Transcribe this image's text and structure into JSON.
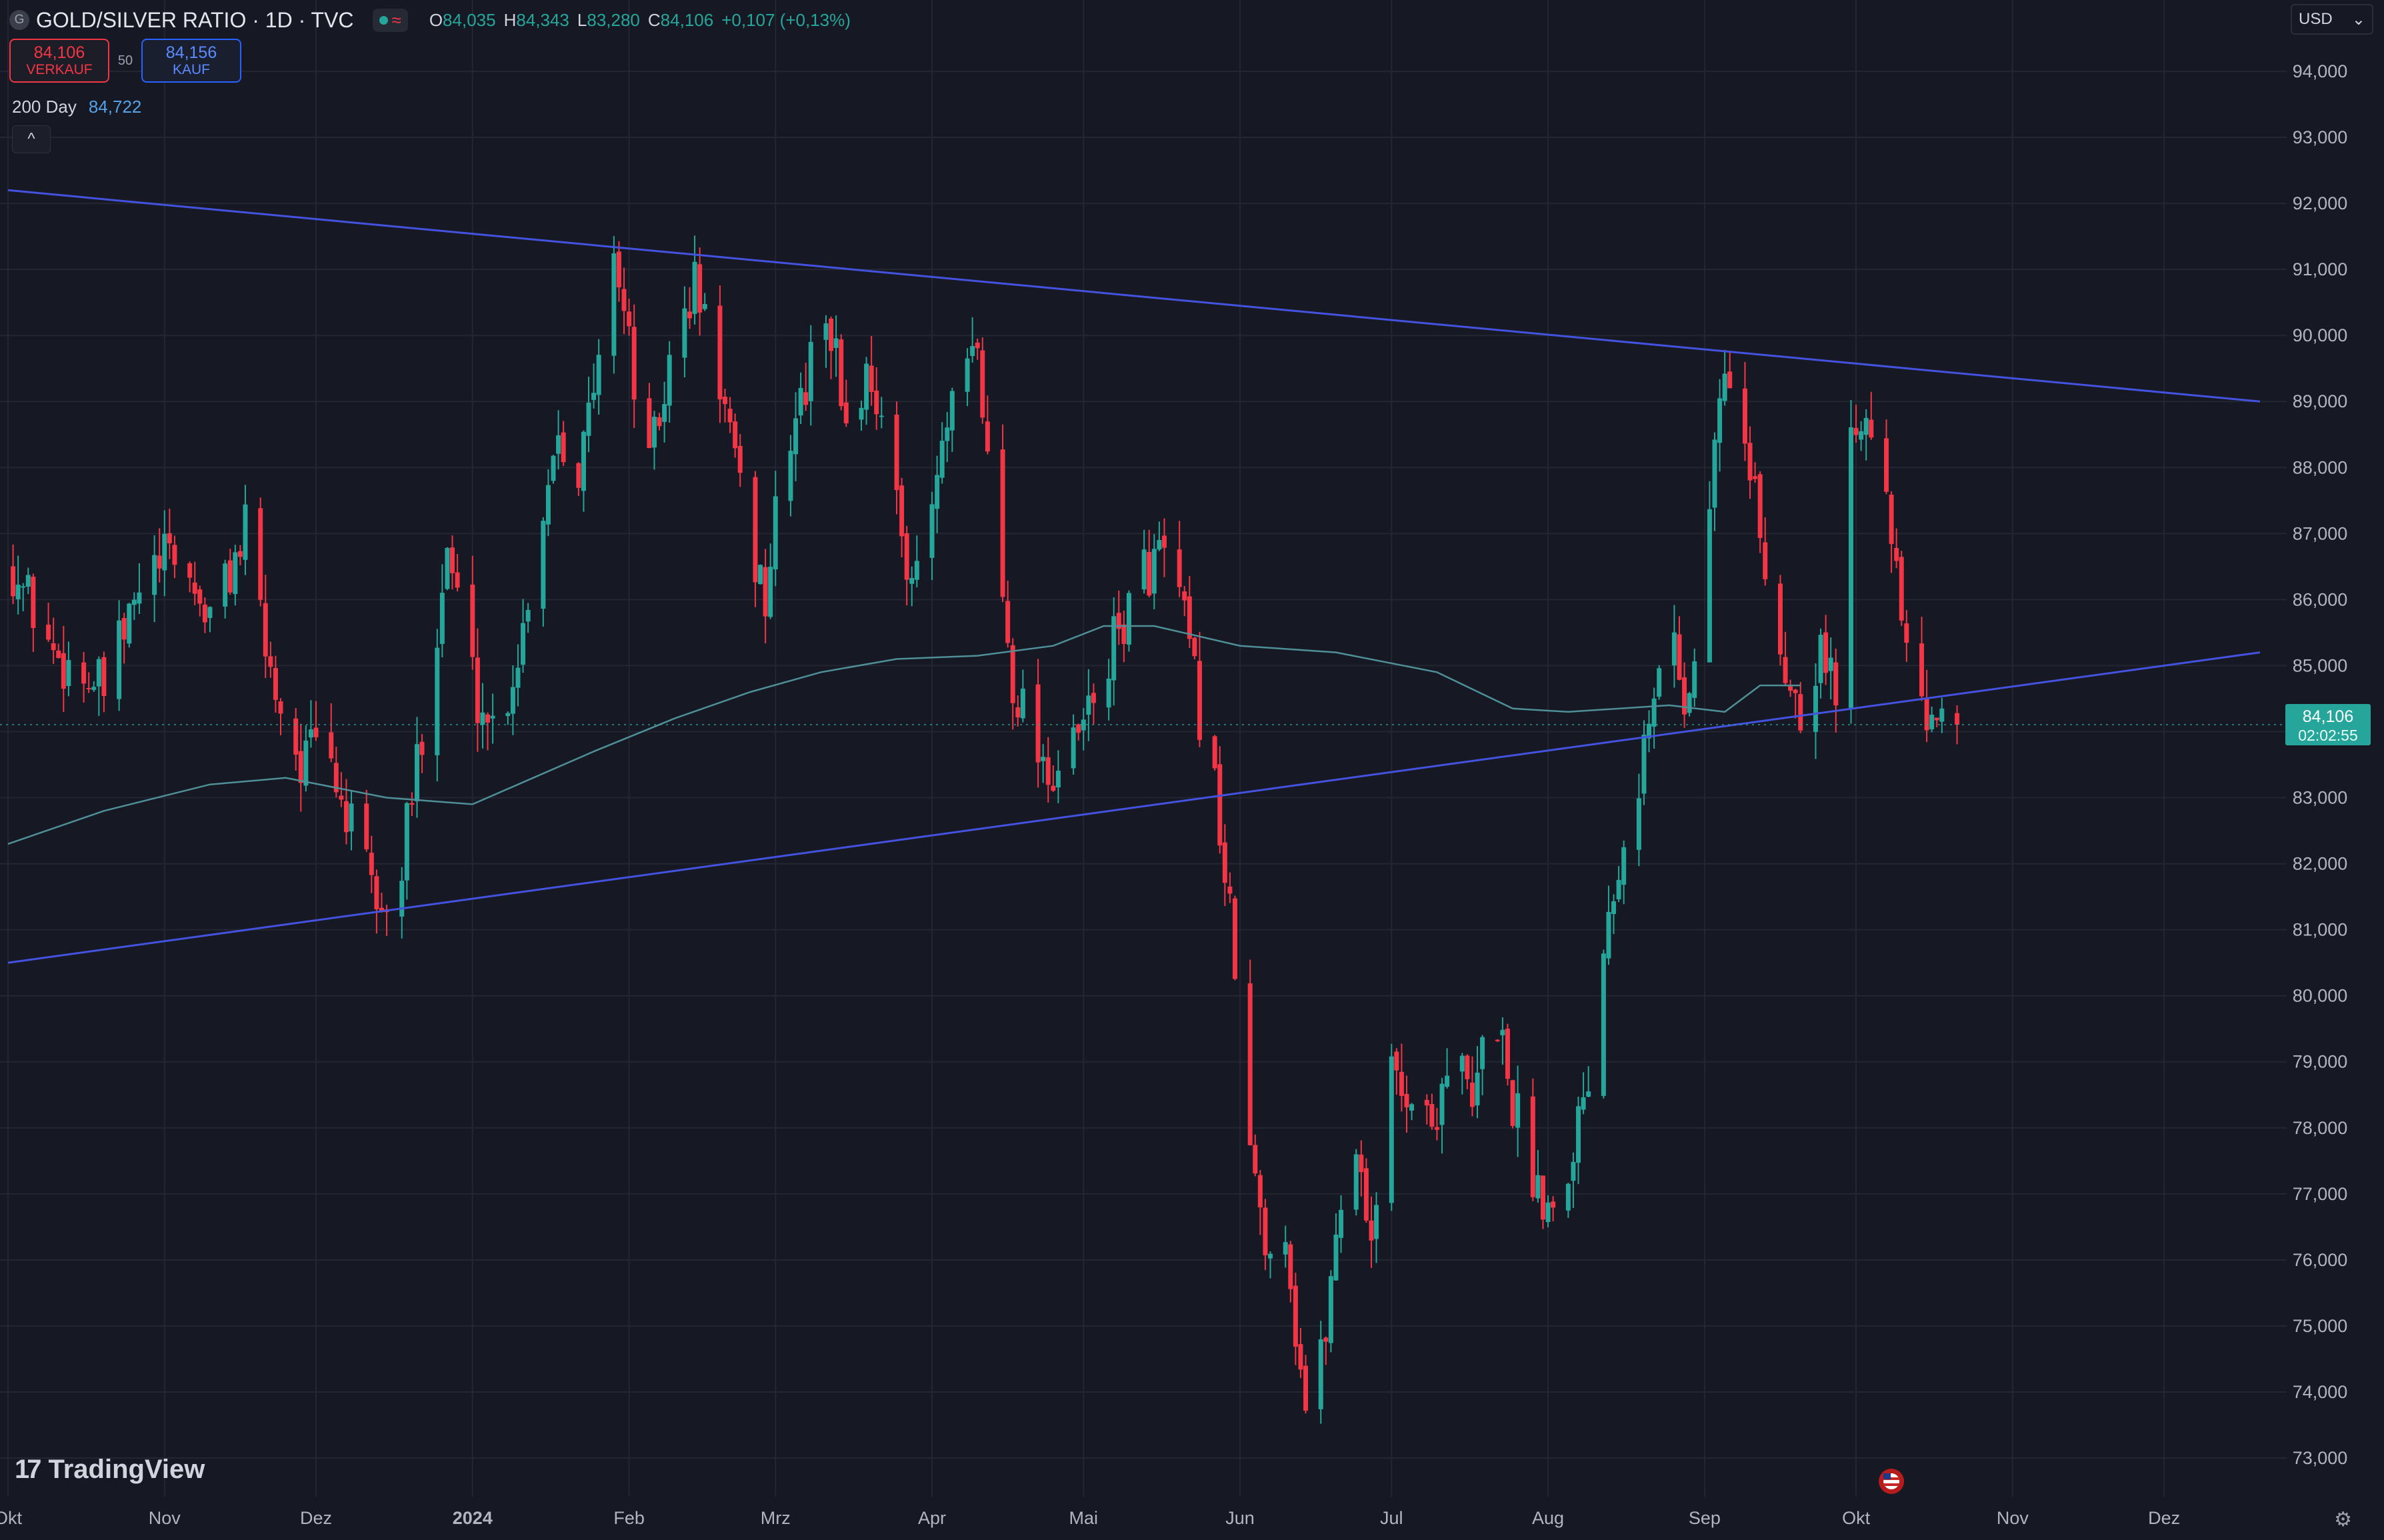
{
  "header": {
    "symbol_icon": "G",
    "title": "GOLD/SILVER RATIO · 1D · TVC",
    "market_status_icon": "green-dot-icon",
    "wave_icon": "≈",
    "ohlc": {
      "o_label": "O",
      "o": "84,035",
      "h_label": "H",
      "h": "84,343",
      "l_label": "L",
      "l": "83,280",
      "c_label": "C",
      "c": "84,106",
      "change": "+0,107 (+0,13%)"
    }
  },
  "trade": {
    "sell_price": "84,106",
    "sell_label": "VERKAUF",
    "spread": "50",
    "buy_price": "84,156",
    "buy_label": "KAUF"
  },
  "indicator": {
    "name": "200 Day",
    "value": "84,722"
  },
  "currency": {
    "value": "USD",
    "chevron": "⌄"
  },
  "price_label": {
    "price": "84,106",
    "countdown": "02:02:55"
  },
  "branding": {
    "logo_mark": "17",
    "logo_text": "TradingView"
  },
  "colors": {
    "background": "#161923",
    "up": "#26a69a",
    "down": "#f23645",
    "ma": "#4f8f98",
    "trendline": "#4452e0",
    "grid": "#232733",
    "price_tag": "#26a69a"
  },
  "chart_data": {
    "type": "candlestick",
    "title": "GOLD/SILVER RATIO · 1D · TVC",
    "xlabel": "",
    "ylabel": "",
    "ylim": [
      72600,
      94700
    ],
    "y_ticks": [
      "73,000",
      "74,000",
      "75,000",
      "76,000",
      "77,000",
      "78,000",
      "79,000",
      "80,000",
      "81,000",
      "82,000",
      "83,000",
      "84,000",
      "85,000",
      "86,000",
      "87,000",
      "88,000",
      "89,000",
      "90,000",
      "91,000",
      "92,000",
      "93,000",
      "94,000"
    ],
    "x_ticks": [
      {
        "date": "2023-10-01",
        "label": "Okt"
      },
      {
        "date": "2023-11-01",
        "label": "Nov"
      },
      {
        "date": "2023-12-01",
        "label": "Dez"
      },
      {
        "date": "2024-01-01",
        "label": "2024"
      },
      {
        "date": "2024-02-01",
        "label": "Feb"
      },
      {
        "date": "2024-03-01",
        "label": "Mrz"
      },
      {
        "date": "2024-04-01",
        "label": "Apr"
      },
      {
        "date": "2024-05-01",
        "label": "Mai"
      },
      {
        "date": "2024-06-01",
        "label": "Jun"
      },
      {
        "date": "2024-07-01",
        "label": "Jul"
      },
      {
        "date": "2024-08-01",
        "label": "Aug"
      },
      {
        "date": "2024-09-01",
        "label": "Sep"
      },
      {
        "date": "2024-10-01",
        "label": "Okt"
      },
      {
        "date": "2024-11-01",
        "label": "Nov"
      },
      {
        "date": "2024-12-01",
        "label": "Dez"
      }
    ],
    "last_price": 84106,
    "trendlines": [
      {
        "x1": "2023-10-01",
        "y1": 92200,
        "x2": "2024-12-20",
        "y2": 89000
      },
      {
        "x1": "2023-10-01",
        "y1": 80500,
        "x2": "2024-12-20",
        "y2": 85200
      }
    ],
    "ma_200": [
      {
        "date": "2023-10-01",
        "v": 82300
      },
      {
        "date": "2023-10-20",
        "v": 82800
      },
      {
        "date": "2023-11-10",
        "v": 83200
      },
      {
        "date": "2023-11-25",
        "v": 83300
      },
      {
        "date": "2023-12-15",
        "v": 83000
      },
      {
        "date": "2024-01-01",
        "v": 82900
      },
      {
        "date": "2024-01-10",
        "v": 83200
      },
      {
        "date": "2024-01-25",
        "v": 83700
      },
      {
        "date": "2024-02-10",
        "v": 84200
      },
      {
        "date": "2024-02-25",
        "v": 84600
      },
      {
        "date": "2024-03-10",
        "v": 84900
      },
      {
        "date": "2024-03-25",
        "v": 85100
      },
      {
        "date": "2024-04-10",
        "v": 85150
      },
      {
        "date": "2024-04-25",
        "v": 85300
      },
      {
        "date": "2024-05-05",
        "v": 85600
      },
      {
        "date": "2024-05-15",
        "v": 85600
      },
      {
        "date": "2024-06-01",
        "v": 85300
      },
      {
        "date": "2024-06-20",
        "v": 85200
      },
      {
        "date": "2024-07-10",
        "v": 84900
      },
      {
        "date": "2024-07-25",
        "v": 84350
      },
      {
        "date": "2024-08-05",
        "v": 84300
      },
      {
        "date": "2024-08-25",
        "v": 84400
      },
      {
        "date": "2024-09-05",
        "v": 84300
      },
      {
        "date": "2024-09-12",
        "v": 84700
      },
      {
        "date": "2024-09-20",
        "v": 84700
      }
    ],
    "anchors": [
      {
        "date": "2023-10-02",
        "v": 86500
      },
      {
        "date": "2023-10-10",
        "v": 85200
      },
      {
        "date": "2023-10-20",
        "v": 84600
      },
      {
        "date": "2023-10-28",
        "v": 86300
      },
      {
        "date": "2023-11-03",
        "v": 86700
      },
      {
        "date": "2023-11-10",
        "v": 85700
      },
      {
        "date": "2023-11-17",
        "v": 87000
      },
      {
        "date": "2023-11-22",
        "v": 84900
      },
      {
        "date": "2023-11-28",
        "v": 83500
      },
      {
        "date": "2023-12-02",
        "v": 83900
      },
      {
        "date": "2023-12-08",
        "v": 82500
      },
      {
        "date": "2023-12-12",
        "v": 81600
      },
      {
        "date": "2023-12-16",
        "v": 81000
      },
      {
        "date": "2023-12-21",
        "v": 83500
      },
      {
        "date": "2023-12-27",
        "v": 86800
      },
      {
        "date": "2024-01-02",
        "v": 84500
      },
      {
        "date": "2024-01-06",
        "v": 84000
      },
      {
        "date": "2024-01-10",
        "v": 85200
      },
      {
        "date": "2024-01-14",
        "v": 87000
      },
      {
        "date": "2024-01-18",
        "v": 88700
      },
      {
        "date": "2024-01-22",
        "v": 88000
      },
      {
        "date": "2024-01-26",
        "v": 89500
      },
      {
        "date": "2024-01-29",
        "v": 91500
      },
      {
        "date": "2024-02-01",
        "v": 89800
      },
      {
        "date": "2024-02-05",
        "v": 88000
      },
      {
        "date": "2024-02-09",
        "v": 89500
      },
      {
        "date": "2024-02-14",
        "v": 90800
      },
      {
        "date": "2024-02-19",
        "v": 89300
      },
      {
        "date": "2024-02-23",
        "v": 87500
      },
      {
        "date": "2024-02-28",
        "v": 86000
      },
      {
        "date": "2024-03-03",
        "v": 88300
      },
      {
        "date": "2024-03-07",
        "v": 89200
      },
      {
        "date": "2024-03-11",
        "v": 90500
      },
      {
        "date": "2024-03-15",
        "v": 88700
      },
      {
        "date": "2024-03-20",
        "v": 89500
      },
      {
        "date": "2024-03-25",
        "v": 87300
      },
      {
        "date": "2024-03-29",
        "v": 86200
      },
      {
        "date": "2024-04-03",
        "v": 88200
      },
      {
        "date": "2024-04-07",
        "v": 89300
      },
      {
        "date": "2024-04-10",
        "v": 89700
      },
      {
        "date": "2024-04-13",
        "v": 87300
      },
      {
        "date": "2024-04-17",
        "v": 84800
      },
      {
        "date": "2024-04-21",
        "v": 84000
      },
      {
        "date": "2024-04-25",
        "v": 83300
      },
      {
        "date": "2024-04-29",
        "v": 83700
      },
      {
        "date": "2024-05-03",
        "v": 84500
      },
      {
        "date": "2024-05-07",
        "v": 85300
      },
      {
        "date": "2024-05-12",
        "v": 86300
      },
      {
        "date": "2024-05-16",
        "v": 86700
      },
      {
        "date": "2024-05-20",
        "v": 86000
      },
      {
        "date": "2024-05-24",
        "v": 84300
      },
      {
        "date": "2024-05-27",
        "v": 83200
      },
      {
        "date": "2024-05-31",
        "v": 80400
      },
      {
        "date": "2024-06-03",
        "v": 77600
      },
      {
        "date": "2024-06-06",
        "v": 76100
      },
      {
        "date": "2024-06-09",
        "v": 77200
      },
      {
        "date": "2024-06-12",
        "v": 75000
      },
      {
        "date": "2024-06-15",
        "v": 73200
      },
      {
        "date": "2024-06-19",
        "v": 75700
      },
      {
        "date": "2024-06-23",
        "v": 78200
      },
      {
        "date": "2024-06-27",
        "v": 76400
      },
      {
        "date": "2024-07-01",
        "v": 78800
      },
      {
        "date": "2024-07-05",
        "v": 78500
      },
      {
        "date": "2024-07-09",
        "v": 78000
      },
      {
        "date": "2024-07-13",
        "v": 79400
      },
      {
        "date": "2024-07-17",
        "v": 78200
      },
      {
        "date": "2024-07-21",
        "v": 80100
      },
      {
        "date": "2024-07-25",
        "v": 78400
      },
      {
        "date": "2024-07-29",
        "v": 77300
      },
      {
        "date": "2024-08-02",
        "v": 76800
      },
      {
        "date": "2024-08-06",
        "v": 77800
      },
      {
        "date": "2024-08-10",
        "v": 79300
      },
      {
        "date": "2024-08-13",
        "v": 81500
      },
      {
        "date": "2024-08-16",
        "v": 82500
      },
      {
        "date": "2024-08-19",
        "v": 83400
      },
      {
        "date": "2024-08-22",
        "v": 84400
      },
      {
        "date": "2024-08-25",
        "v": 86000
      },
      {
        "date": "2024-08-28",
        "v": 84500
      },
      {
        "date": "2024-08-31",
        "v": 85100
      },
      {
        "date": "2024-09-03",
        "v": 88500
      },
      {
        "date": "2024-09-06",
        "v": 89600
      },
      {
        "date": "2024-09-09",
        "v": 88200
      },
      {
        "date": "2024-09-12",
        "v": 87000
      },
      {
        "date": "2024-09-15",
        "v": 85300
      },
      {
        "date": "2024-09-18",
        "v": 84800
      },
      {
        "date": "2024-09-21",
        "v": 84300
      },
      {
        "date": "2024-09-24",
        "v": 85400
      },
      {
        "date": "2024-09-27",
        "v": 84500
      },
      {
        "date": "2024-09-30",
        "v": 88500
      },
      {
        "date": "2024-10-03",
        "v": 89200
      },
      {
        "date": "2024-10-06",
        "v": 88000
      },
      {
        "date": "2024-10-09",
        "v": 86200
      },
      {
        "date": "2024-10-12",
        "v": 84800
      },
      {
        "date": "2024-10-15",
        "v": 83800
      },
      {
        "date": "2024-10-18",
        "v": 84500
      },
      {
        "date": "2024-10-21",
        "v": 84106
      }
    ]
  }
}
